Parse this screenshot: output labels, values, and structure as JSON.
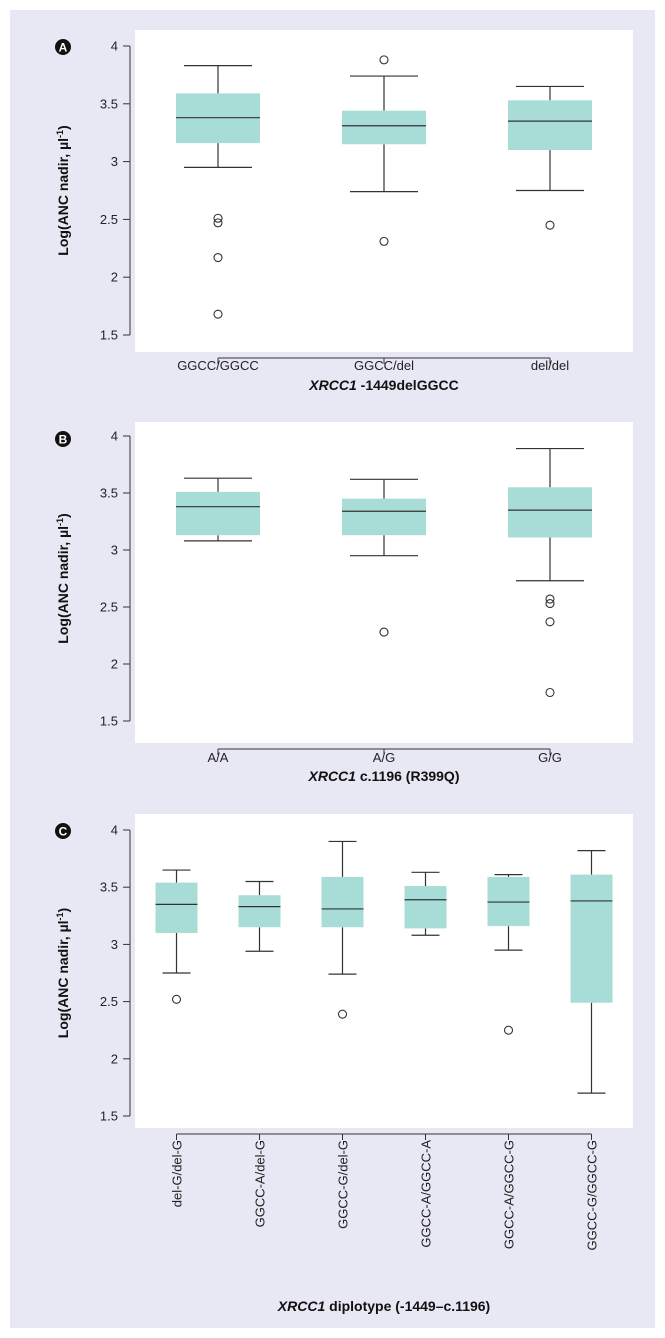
{
  "colors": {
    "background": "#e8e7f4",
    "plot_area": "#ffffff",
    "box_fill": "#a8dcd6",
    "line": "#333333",
    "panel_badge": "#111111"
  },
  "chart_data": [
    {
      "type": "box",
      "panel": "A",
      "xlabel_italic": "XRCC1",
      "xlabel_rest": " -1449delGGCC",
      "ylabel": "Log(ANC nadir, µl",
      "ylabel_sup": "-1",
      "ylabel_end": ")",
      "ylim": [
        1.45,
        4.05
      ],
      "yticks": [
        "1.5",
        "2",
        "2.5",
        "3",
        "3.5",
        "4"
      ],
      "categories": [
        "GGCC/GGCC",
        "GGCC/del",
        "del/del"
      ],
      "boxes": [
        {
          "whisker_low": 2.95,
          "q1": 3.16,
          "median": 3.38,
          "q3": 3.59,
          "whisker_high": 3.83,
          "outliers": [
            2.51,
            2.47,
            2.17,
            1.68
          ]
        },
        {
          "whisker_low": 2.74,
          "q1": 3.15,
          "median": 3.31,
          "q3": 3.44,
          "whisker_high": 3.74,
          "outliers": [
            3.88,
            2.31
          ]
        },
        {
          "whisker_low": 2.75,
          "q1": 3.1,
          "median": 3.35,
          "q3": 3.53,
          "whisker_high": 3.65,
          "outliers": [
            2.45
          ]
        }
      ]
    },
    {
      "type": "box",
      "panel": "B",
      "xlabel_italic": "XRCC1",
      "xlabel_rest": " c.1196 (R399Q)",
      "ylabel": "Log(ANC nadir, µl",
      "ylabel_sup": "-1",
      "ylabel_end": ")",
      "ylim": [
        1.45,
        4.05
      ],
      "yticks": [
        "1.5",
        "2",
        "2.5",
        "3",
        "3.5",
        "4"
      ],
      "categories": [
        "A/A",
        "A/G",
        "G/G"
      ],
      "boxes": [
        {
          "whisker_low": 3.08,
          "q1": 3.13,
          "median": 3.38,
          "q3": 3.51,
          "whisker_high": 3.63,
          "outliers": []
        },
        {
          "whisker_low": 2.95,
          "q1": 3.13,
          "median": 3.34,
          "q3": 3.45,
          "whisker_high": 3.62,
          "outliers": [
            2.28
          ]
        },
        {
          "whisker_low": 2.73,
          "q1": 3.11,
          "median": 3.35,
          "q3": 3.55,
          "whisker_high": 3.89,
          "outliers": [
            2.57,
            2.53,
            2.37,
            1.75
          ]
        }
      ]
    },
    {
      "type": "box",
      "panel": "C",
      "xlabel_italic": "XRCC1",
      "xlabel_rest": " diplotype (-1449–c.1196)",
      "ylabel": "Log(ANC nadir, µl",
      "ylabel_sup": "-1",
      "ylabel_end": ")",
      "ylim": [
        1.45,
        4.05
      ],
      "yticks": [
        "1.5",
        "2",
        "2.5",
        "3",
        "3.5",
        "4"
      ],
      "categories": [
        "del-G/del-G",
        "GGCC-A/del-G",
        "GGCC-G/del-G",
        "GGCC-A/GGCC-A",
        "GGCC-A/GGCC-G",
        "GGCC-G/GGCC-G"
      ],
      "boxes": [
        {
          "whisker_low": 2.75,
          "q1": 3.1,
          "median": 3.35,
          "q3": 3.54,
          "whisker_high": 3.65,
          "outliers": [
            2.52
          ]
        },
        {
          "whisker_low": 2.94,
          "q1": 3.15,
          "median": 3.33,
          "q3": 3.43,
          "whisker_high": 3.55,
          "outliers": []
        },
        {
          "whisker_low": 2.74,
          "q1": 3.15,
          "median": 3.31,
          "q3": 3.59,
          "whisker_high": 3.9,
          "outliers": [
            2.39
          ]
        },
        {
          "whisker_low": 3.08,
          "q1": 3.14,
          "median": 3.39,
          "q3": 3.51,
          "whisker_high": 3.63,
          "outliers": []
        },
        {
          "whisker_low": 2.95,
          "q1": 3.16,
          "median": 3.37,
          "q3": 3.59,
          "whisker_high": 3.61,
          "outliers": [
            2.25
          ]
        },
        {
          "whisker_low": 1.7,
          "q1": 2.49,
          "median": 3.38,
          "q3": 3.61,
          "whisker_high": 3.82,
          "outliers": []
        }
      ]
    }
  ]
}
